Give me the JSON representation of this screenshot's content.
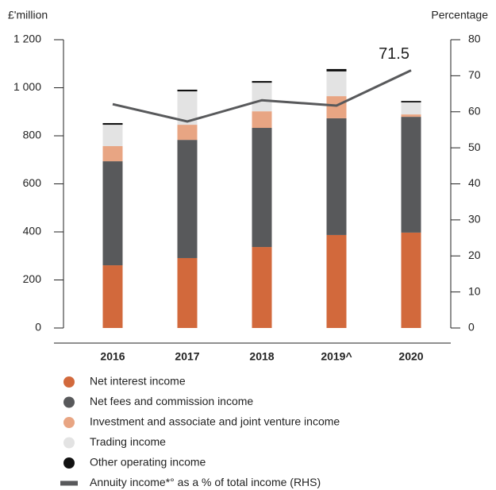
{
  "chart_data": {
    "type": "bar",
    "stacked": true,
    "ylabel": "£'million",
    "y2label": "Percentage",
    "categories": [
      "2016",
      "2017",
      "2018",
      "2019^",
      "2020"
    ],
    "series": [
      {
        "name": "Net interest income",
        "color": "#d2693c",
        "values": [
          261,
          291,
          337,
          387,
          397
        ]
      },
      {
        "name": "Net fees and commission income",
        "color": "#58595b",
        "values": [
          433,
          492,
          496,
          486,
          482
        ]
      },
      {
        "name": "Investment and associate and joint venture income",
        "color": "#e8a583",
        "values": [
          63,
          63,
          69,
          92,
          10
        ]
      },
      {
        "name": "Trading income",
        "color": "#e3e3e3",
        "values": [
          89,
          139,
          119,
          103,
          50
        ]
      },
      {
        "name": "Other operating income",
        "color": "#111111",
        "values": [
          7,
          7,
          7,
          10,
          6
        ]
      },
      {
        "name": "Annuity income*° as a % of total income (RHS)",
        "type": "line",
        "axis": "y2",
        "color": "#58595b",
        "values": [
          62.1,
          57.3,
          63.2,
          61.7,
          71.5
        ],
        "value_labels": [
          null,
          null,
          null,
          null,
          "71.5"
        ]
      }
    ],
    "ylim": [
      0,
      1200
    ],
    "yticks": [
      0,
      200,
      400,
      600,
      800,
      {
        "value": 1000,
        "label": "1 000"
      },
      {
        "value": 1200,
        "label": "1 200"
      }
    ],
    "y2lim": [
      0,
      80
    ],
    "y2ticks": [
      0,
      10,
      20,
      30,
      40,
      50,
      60,
      70,
      80
    ]
  }
}
